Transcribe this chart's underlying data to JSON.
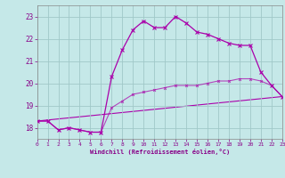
{
  "xlabel": "Windchill (Refroidissement éolien,°C)",
  "bg_color": "#c5e8e8",
  "grid_color": "#a0c8c8",
  "line_color": "#aa00aa",
  "xlim": [
    0,
    23
  ],
  "ylim": [
    17.5,
    23.5
  ],
  "yticks": [
    18,
    19,
    20,
    21,
    22,
    23
  ],
  "xticks": [
    0,
    1,
    2,
    3,
    4,
    5,
    6,
    7,
    8,
    9,
    10,
    11,
    12,
    13,
    14,
    15,
    16,
    17,
    18,
    19,
    20,
    21,
    22,
    23
  ],
  "series1_x": [
    0,
    1,
    2,
    3,
    4,
    5,
    6,
    7,
    8,
    9,
    10,
    11,
    12,
    13,
    14,
    15,
    16,
    17,
    18,
    19,
    20,
    21,
    22,
    23
  ],
  "series1_y": [
    18.3,
    18.3,
    17.9,
    18.0,
    17.9,
    17.8,
    17.8,
    20.3,
    21.5,
    22.4,
    22.8,
    22.5,
    22.5,
    23.0,
    22.7,
    22.3,
    22.2,
    22.0,
    21.8,
    21.7,
    21.7,
    20.5,
    19.9,
    19.4
  ],
  "series2_x": [
    0,
    1,
    2,
    3,
    4,
    5,
    6,
    7,
    8,
    9,
    10,
    11,
    12,
    13,
    14,
    15,
    16,
    17,
    18,
    19,
    20,
    21,
    22,
    23
  ],
  "series2_y": [
    18.3,
    18.3,
    17.9,
    18.0,
    17.9,
    17.8,
    17.8,
    18.9,
    19.2,
    19.5,
    19.6,
    19.7,
    19.8,
    19.9,
    19.9,
    19.9,
    20.0,
    20.1,
    20.1,
    20.2,
    20.2,
    20.1,
    19.9,
    19.4
  ],
  "series3_x": [
    0,
    23
  ],
  "series3_y": [
    18.3,
    19.4
  ]
}
